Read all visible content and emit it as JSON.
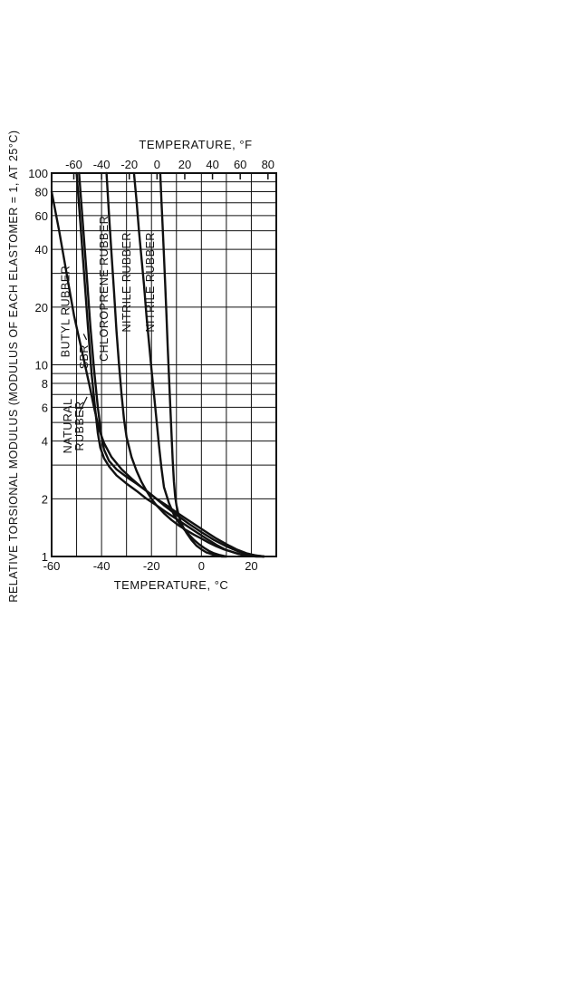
{
  "chart_data": {
    "type": "line",
    "xlabel_bottom": "TEMPERATURE, °C",
    "xlabel_top": "TEMPERATURE, °F",
    "ylabel": "RELATIVE TORSIONAL MODULUS (MODULUS OF EACH ELASTOMER = 1, AT 25°C)",
    "xlim": [
      -60,
      30
    ],
    "ylim": [
      1,
      100
    ],
    "y_scale": "log",
    "grid": true,
    "x_ticks": [
      -60,
      -40,
      -20,
      0,
      20
    ],
    "x_tick_labels": [
      "-60",
      "-40",
      "-20",
      "0",
      "20"
    ],
    "top_ticks": [
      -60,
      -40,
      -20,
      0,
      20,
      40,
      60,
      80
    ],
    "top_tick_labels": [
      "-60",
      "-40",
      "-20",
      "0",
      "20",
      "40",
      "60",
      "80"
    ],
    "y_ticks": [
      1,
      2,
      4,
      6,
      8,
      10,
      20,
      40,
      60,
      80,
      100
    ],
    "y_tick_labels": [
      "1",
      "2",
      "4",
      "6",
      "8",
      "10",
      "20",
      "40",
      "60",
      "80",
      "100"
    ],
    "series": [
      {
        "name": "BUTYL RUBBER",
        "x": [
          -60,
          -57,
          -54,
          -51,
          -48,
          -45,
          -43,
          -41,
          -39,
          -36,
          -32,
          -28,
          -24,
          -20,
          -15,
          -10,
          -5,
          0,
          5,
          10,
          15,
          20,
          25
        ],
        "y": [
          80,
          50,
          30,
          18,
          12,
          8,
          6,
          4.6,
          3.9,
          3.3,
          2.85,
          2.55,
          2.3,
          2.1,
          1.85,
          1.65,
          1.48,
          1.34,
          1.22,
          1.13,
          1.06,
          1.02,
          1.0
        ]
      },
      {
        "name": "NATURAL RUBBER",
        "x": [
          -49,
          -47.5,
          -46,
          -44.5,
          -43,
          -41.5,
          -40,
          -39,
          -37,
          -34,
          -30,
          -26,
          -22,
          -18,
          -14,
          -10,
          -6,
          -2,
          2,
          6,
          10,
          14,
          18,
          22,
          25
        ],
        "y": [
          100,
          55,
          30,
          16,
          9.5,
          6,
          4.2,
          3.6,
          3.15,
          2.85,
          2.6,
          2.4,
          2.2,
          2.0,
          1.85,
          1.7,
          1.57,
          1.45,
          1.34,
          1.24,
          1.16,
          1.09,
          1.04,
          1.01,
          1.0
        ]
      },
      {
        "name": "SBR",
        "x": [
          -50,
          -48.5,
          -47,
          -45.5,
          -44,
          -42.5,
          -41.5,
          -40.5,
          -39,
          -37,
          -34,
          -30,
          -26,
          -22,
          -18,
          -14,
          -10,
          -6,
          -2,
          2,
          6,
          10,
          14,
          18,
          22,
          25
        ],
        "y": [
          100,
          55,
          30,
          16,
          9,
          5.8,
          4.4,
          3.7,
          3.25,
          2.95,
          2.65,
          2.4,
          2.2,
          2.0,
          1.85,
          1.7,
          1.57,
          1.45,
          1.34,
          1.24,
          1.15,
          1.08,
          1.04,
          1.01,
          1.0,
          1.0
        ]
      },
      {
        "name": "CHLOROPRENE RUBBER",
        "x": [
          -38,
          -37,
          -36,
          -35,
          -34,
          -33,
          -32,
          -31,
          -30,
          -28,
          -26,
          -24,
          -22,
          -20,
          -18,
          -15,
          -12,
          -9,
          -6,
          -3,
          0,
          3,
          6,
          9,
          12,
          15,
          18,
          21,
          25
        ],
        "y": [
          100,
          60,
          38,
          24,
          15,
          10,
          7,
          5.2,
          4.2,
          3.3,
          2.8,
          2.45,
          2.2,
          2.0,
          1.85,
          1.68,
          1.55,
          1.45,
          1.37,
          1.3,
          1.24,
          1.18,
          1.13,
          1.09,
          1.06,
          1.03,
          1.02,
          1.01,
          1.0
        ]
      },
      {
        "name": "NITRILE RUBBER",
        "x": [
          -27,
          -26,
          -25,
          -24,
          -23,
          -22,
          -21,
          -20,
          -19,
          -18,
          -17,
          -16,
          -15,
          -13,
          -11,
          -9,
          -7,
          -5,
          -3,
          -1,
          1,
          3,
          5,
          7,
          10
        ],
        "y": [
          100,
          72,
          50,
          36,
          26,
          18,
          13,
          9.5,
          7,
          5.2,
          3.8,
          2.9,
          2.3,
          1.9,
          1.65,
          1.5,
          1.39,
          1.3,
          1.22,
          1.16,
          1.11,
          1.07,
          1.04,
          1.02,
          1.0
        ]
      },
      {
        "name": "NITRILE RUBBER",
        "x": [
          -16.5,
          -16,
          -15.5,
          -15,
          -14.5,
          -14,
          -13.5,
          -13,
          -12.5,
          -12,
          -11.5,
          -11,
          -10.5,
          -10,
          -9,
          -8,
          -6,
          -4,
          -2,
          0,
          2,
          4,
          6,
          8,
          10
        ],
        "y": [
          100,
          72,
          52,
          37,
          26,
          18,
          12.5,
          8.8,
          6.2,
          4.4,
          3.2,
          2.45,
          2.05,
          1.85,
          1.62,
          1.48,
          1.33,
          1.22,
          1.14,
          1.09,
          1.05,
          1.03,
          1.01,
          1.0,
          1.0
        ]
      }
    ],
    "annotations": [
      {
        "text": "BUTYL RUBBER",
        "x": -53,
        "y": 19
      },
      {
        "text": "SBR",
        "x": -45.5,
        "y": 11
      },
      {
        "text": "NATURAL RUBBER",
        "x": -52,
        "y": 4.8
      },
      {
        "text": "CHLOROPRENE RUBBER",
        "x": -37.5,
        "y": 25
      },
      {
        "text": "NITRILE RUBBER",
        "x": -28.5,
        "y": 27
      },
      {
        "text": "NITRILE RUBBER",
        "x": -19,
        "y": 27
      }
    ]
  }
}
